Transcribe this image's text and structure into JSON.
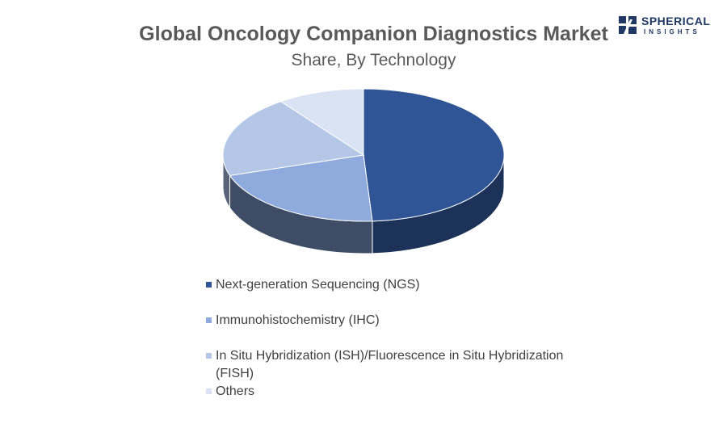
{
  "chart_data": {
    "type": "pie",
    "title": "Global Oncology Companion Diagnostics Market",
    "subtitle": "Share, By Technology",
    "slices": [
      {
        "label": "Next-generation Sequencing (NGS)",
        "value": 49,
        "color": "#2f5597",
        "side_color": "#1c3258"
      },
      {
        "label": "Immunohistochemistry (IHC)",
        "value": 21,
        "color": "#8faadc",
        "side_color": "#3e4c66"
      },
      {
        "label": "In Situ Hybridization (ISH)/Fluorescence in Situ Hybridization (FISH)",
        "value": 20,
        "color": "#b4c7e7",
        "side_color": "#5a6479"
      },
      {
        "label": "Others",
        "value": 10,
        "color": "#dae3f3",
        "side_color": "#a9b0bd"
      }
    ],
    "legend_position": "bottom"
  },
  "logo": {
    "name": "SPHERICAL",
    "sub": "INSIGHTS",
    "color": "#1f3864"
  }
}
